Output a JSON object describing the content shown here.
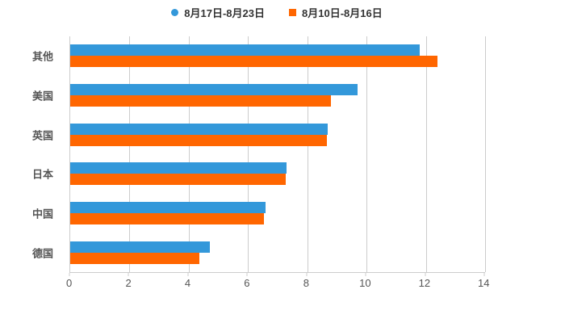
{
  "legend": {
    "series1_label": "8月17日-8月23日",
    "series2_label": "8月10日-8月16日"
  },
  "colors": {
    "series1": "#3398da",
    "series2": "#ff6600",
    "grid": "#cccccc",
    "axis_text": "#555555",
    "legend_text": "#333333",
    "background": "#ffffff"
  },
  "chart_data": {
    "type": "bar",
    "orientation": "horizontal",
    "title": "",
    "xlabel": "",
    "ylabel": "",
    "categories": [
      "其他",
      "美国",
      "英国",
      "日本",
      "中国",
      "德国"
    ],
    "series": [
      {
        "name": "8月17日-8月23日",
        "color": "#3398da",
        "marker": "circle",
        "values": [
          11.8,
          9.7,
          8.7,
          7.3,
          6.6,
          4.7
        ]
      },
      {
        "name": "8月10日-8月16日",
        "color": "#ff6600",
        "marker": "square",
        "values": [
          12.4,
          8.8,
          8.65,
          7.28,
          6.55,
          4.35
        ]
      }
    ],
    "xlim": [
      0,
      14
    ],
    "xticks": [
      0,
      2,
      4,
      6,
      8,
      10,
      12,
      14
    ],
    "grid": true,
    "legend_position": "top-center"
  }
}
